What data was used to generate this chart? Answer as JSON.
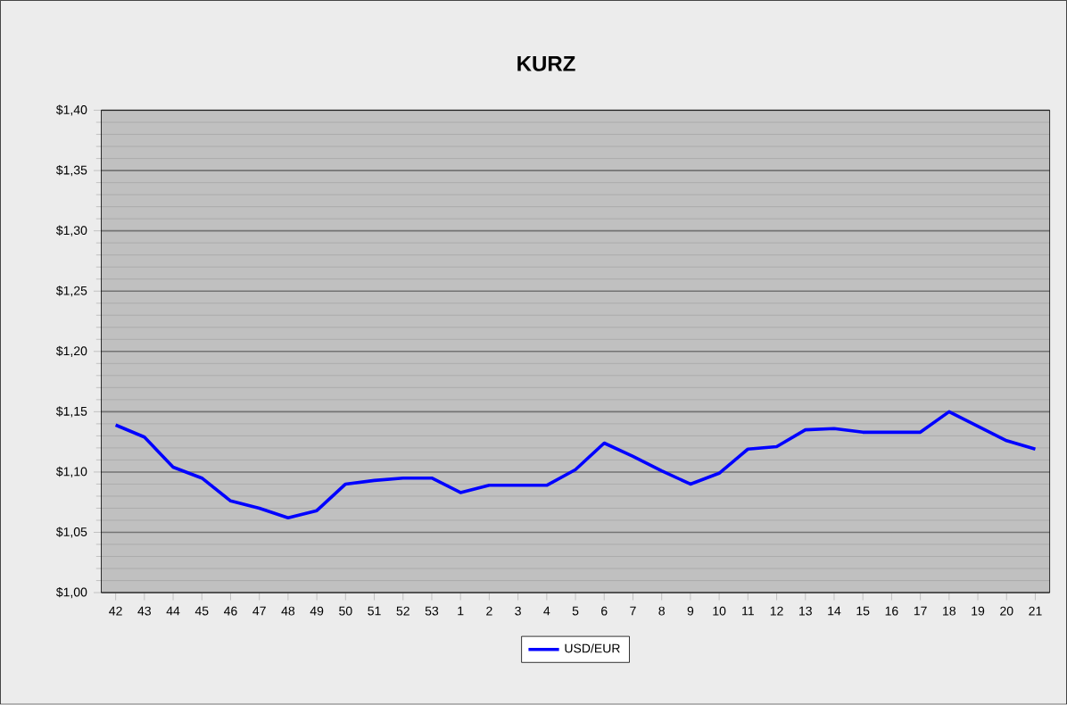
{
  "chart_data": {
    "type": "line",
    "title": "KURZ",
    "categories": [
      "42",
      "43",
      "44",
      "45",
      "46",
      "47",
      "48",
      "49",
      "50",
      "51",
      "52",
      "53",
      "1",
      "2",
      "3",
      "4",
      "5",
      "6",
      "7",
      "8",
      "9",
      "10",
      "11",
      "12",
      "13",
      "14",
      "15",
      "16",
      "17",
      "18",
      "19",
      "20",
      "21"
    ],
    "series": [
      {
        "name": "USD/EUR",
        "color": "#0000ff",
        "values": [
          1.139,
          1.129,
          1.104,
          1.095,
          1.076,
          1.07,
          1.062,
          1.068,
          1.09,
          1.093,
          1.095,
          1.095,
          1.083,
          1.089,
          1.089,
          1.089,
          1.102,
          1.124,
          1.113,
          1.101,
          1.09,
          1.099,
          1.119,
          1.121,
          1.135,
          1.136,
          1.133,
          1.133,
          1.133,
          1.15,
          1.138,
          1.126,
          1.119
        ]
      }
    ],
    "ylim": [
      1.0,
      1.4
    ],
    "yticks": [
      {
        "value": 1.0,
        "label": "$1,00"
      },
      {
        "value": 1.05,
        "label": "$1,05"
      },
      {
        "value": 1.1,
        "label": "$1,10"
      },
      {
        "value": 1.15,
        "label": "$1,15"
      },
      {
        "value": 1.2,
        "label": "$1,20"
      },
      {
        "value": 1.25,
        "label": "$1,25"
      },
      {
        "value": 1.3,
        "label": "$1,30"
      },
      {
        "value": 1.35,
        "label": "$1,35"
      },
      {
        "value": 1.4,
        "label": "$1,40"
      }
    ],
    "grid": "y",
    "legend": "bottom",
    "marker": "none",
    "line_style": "solid"
  }
}
